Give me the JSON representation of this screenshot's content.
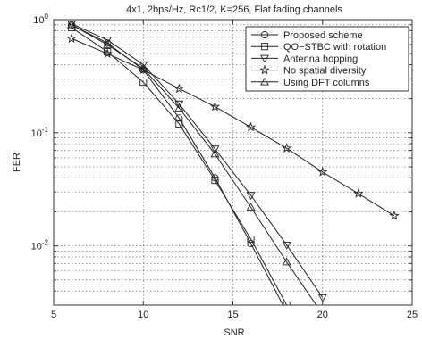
{
  "chart_data": {
    "type": "line",
    "title": "4x1, 2bps/Hz, Rc1/2, K=256, Flat fading channels",
    "xlabel": "SNR",
    "ylabel": "FER",
    "xlim": [
      5,
      25
    ],
    "ylim": [
      0.003,
      1
    ],
    "yscale": "log",
    "grid": true,
    "legend_position": "top-right",
    "x_ticks": [
      5,
      10,
      15,
      20,
      25
    ],
    "y_ticks": [
      {
        "value": 1,
        "base": "10",
        "exp": "0"
      },
      {
        "value": 0.1,
        "base": "10",
        "exp": "-1"
      },
      {
        "value": 0.01,
        "base": "10",
        "exp": "-2"
      }
    ],
    "series": [
      {
        "name": "Proposed scheme",
        "marker": "circle",
        "x": [
          6,
          8,
          10,
          12,
          14,
          16,
          18
        ],
        "y": [
          0.9,
          0.62,
          0.36,
          0.135,
          0.04,
          0.0105,
          0.0026
        ]
      },
      {
        "name": "QO−STBC with rotation",
        "marker": "square",
        "x": [
          6,
          8,
          10,
          12,
          14,
          16,
          18
        ],
        "y": [
          0.85,
          0.52,
          0.28,
          0.12,
          0.038,
          0.0115,
          0.003
        ]
      },
      {
        "name": "Antenna hopping",
        "marker": "triangle-down",
        "x": [
          6,
          8,
          10,
          12,
          14,
          16,
          18,
          20
        ],
        "y": [
          0.92,
          0.66,
          0.4,
          0.18,
          0.072,
          0.028,
          0.0102,
          0.0035
        ]
      },
      {
        "name": "No spatial diversity",
        "marker": "star",
        "x": [
          6,
          8,
          10,
          12,
          14,
          16,
          18,
          20,
          22,
          24
        ],
        "y": [
          0.68,
          0.5,
          0.36,
          0.245,
          0.17,
          0.112,
          0.073,
          0.045,
          0.029,
          0.0185
        ]
      },
      {
        "name": "Using DFT columns",
        "marker": "triangle-up",
        "x": [
          6,
          8,
          10,
          12,
          14,
          16,
          18,
          20
        ],
        "y": [
          0.9,
          0.6,
          0.37,
          0.165,
          0.065,
          0.022,
          0.0072,
          0.0025
        ]
      }
    ]
  }
}
